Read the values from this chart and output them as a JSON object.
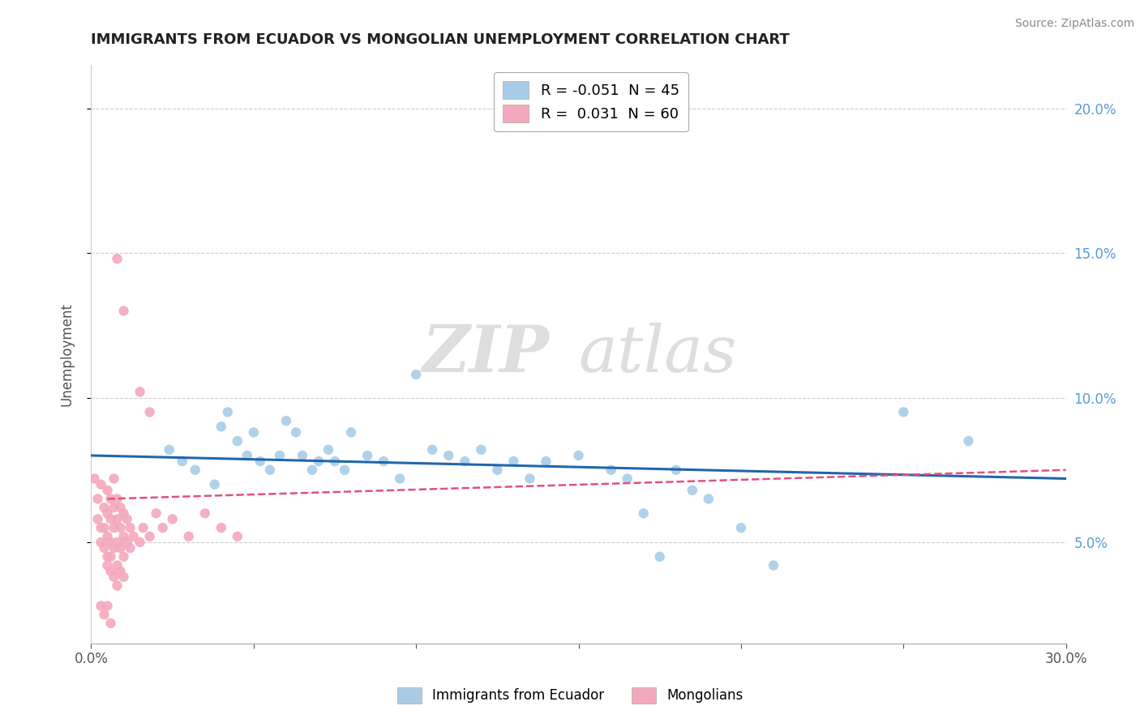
{
  "title": "IMMIGRANTS FROM ECUADOR VS MONGOLIAN UNEMPLOYMENT CORRELATION CHART",
  "source": "Source: ZipAtlas.com",
  "ylabel": "Unemployment",
  "xmin": 0.0,
  "xmax": 0.3,
  "ymin": 0.015,
  "ymax": 0.215,
  "yticks": [
    0.05,
    0.1,
    0.15,
    0.2
  ],
  "ytick_labels": [
    "5.0%",
    "10.0%",
    "15.0%",
    "20.0%"
  ],
  "legend_entries": [
    {
      "color": "#a8cce8",
      "label": "R = -0.051  N = 45"
    },
    {
      "color": "#f4a8be",
      "label": "R =  0.031  N = 60"
    }
  ],
  "blue_scatter": [
    [
      0.024,
      0.082
    ],
    [
      0.028,
      0.078
    ],
    [
      0.032,
      0.075
    ],
    [
      0.038,
      0.07
    ],
    [
      0.04,
      0.09
    ],
    [
      0.042,
      0.095
    ],
    [
      0.045,
      0.085
    ],
    [
      0.048,
      0.08
    ],
    [
      0.05,
      0.088
    ],
    [
      0.052,
      0.078
    ],
    [
      0.055,
      0.075
    ],
    [
      0.058,
      0.08
    ],
    [
      0.06,
      0.092
    ],
    [
      0.063,
      0.088
    ],
    [
      0.065,
      0.08
    ],
    [
      0.068,
      0.075
    ],
    [
      0.07,
      0.078
    ],
    [
      0.073,
      0.082
    ],
    [
      0.075,
      0.078
    ],
    [
      0.078,
      0.075
    ],
    [
      0.08,
      0.088
    ],
    [
      0.085,
      0.08
    ],
    [
      0.09,
      0.078
    ],
    [
      0.095,
      0.072
    ],
    [
      0.1,
      0.108
    ],
    [
      0.105,
      0.082
    ],
    [
      0.11,
      0.08
    ],
    [
      0.115,
      0.078
    ],
    [
      0.12,
      0.082
    ],
    [
      0.125,
      0.075
    ],
    [
      0.13,
      0.078
    ],
    [
      0.135,
      0.072
    ],
    [
      0.14,
      0.078
    ],
    [
      0.15,
      0.08
    ],
    [
      0.16,
      0.075
    ],
    [
      0.165,
      0.072
    ],
    [
      0.17,
      0.06
    ],
    [
      0.175,
      0.045
    ],
    [
      0.18,
      0.075
    ],
    [
      0.185,
      0.068
    ],
    [
      0.19,
      0.065
    ],
    [
      0.2,
      0.055
    ],
    [
      0.21,
      0.042
    ],
    [
      0.25,
      0.095
    ],
    [
      0.27,
      0.085
    ]
  ],
  "pink_scatter": [
    [
      0.001,
      0.072
    ],
    [
      0.002,
      0.065
    ],
    [
      0.002,
      0.058
    ],
    [
      0.003,
      0.07
    ],
    [
      0.003,
      0.055
    ],
    [
      0.003,
      0.05
    ],
    [
      0.004,
      0.062
    ],
    [
      0.004,
      0.048
    ],
    [
      0.004,
      0.055
    ],
    [
      0.005,
      0.068
    ],
    [
      0.005,
      0.06
    ],
    [
      0.005,
      0.052
    ],
    [
      0.005,
      0.045
    ],
    [
      0.005,
      0.042
    ],
    [
      0.006,
      0.065
    ],
    [
      0.006,
      0.058
    ],
    [
      0.006,
      0.05
    ],
    [
      0.006,
      0.045
    ],
    [
      0.006,
      0.04
    ],
    [
      0.007,
      0.072
    ],
    [
      0.007,
      0.062
    ],
    [
      0.007,
      0.055
    ],
    [
      0.007,
      0.048
    ],
    [
      0.007,
      0.038
    ],
    [
      0.008,
      0.065
    ],
    [
      0.008,
      0.058
    ],
    [
      0.008,
      0.05
    ],
    [
      0.008,
      0.042
    ],
    [
      0.008,
      0.035
    ],
    [
      0.009,
      0.062
    ],
    [
      0.009,
      0.055
    ],
    [
      0.009,
      0.048
    ],
    [
      0.009,
      0.04
    ],
    [
      0.01,
      0.06
    ],
    [
      0.01,
      0.052
    ],
    [
      0.01,
      0.045
    ],
    [
      0.01,
      0.038
    ],
    [
      0.011,
      0.058
    ],
    [
      0.011,
      0.05
    ],
    [
      0.012,
      0.055
    ],
    [
      0.012,
      0.048
    ],
    [
      0.013,
      0.052
    ],
    [
      0.015,
      0.05
    ],
    [
      0.016,
      0.055
    ],
    [
      0.018,
      0.052
    ],
    [
      0.02,
      0.06
    ],
    [
      0.022,
      0.055
    ],
    [
      0.025,
      0.058
    ],
    [
      0.03,
      0.052
    ],
    [
      0.035,
      0.06
    ],
    [
      0.04,
      0.055
    ],
    [
      0.045,
      0.052
    ],
    [
      0.008,
      0.148
    ],
    [
      0.01,
      0.13
    ],
    [
      0.015,
      0.102
    ],
    [
      0.018,
      0.095
    ],
    [
      0.003,
      0.028
    ],
    [
      0.004,
      0.025
    ],
    [
      0.005,
      0.028
    ],
    [
      0.006,
      0.022
    ]
  ],
  "blue_line_x": [
    0.0,
    0.3
  ],
  "blue_line_y": [
    0.08,
    0.072
  ],
  "pink_line_x": [
    0.005,
    0.3
  ],
  "pink_line_y": [
    0.065,
    0.075
  ],
  "blue_color": "#a8cce8",
  "pink_color": "#f4a8be",
  "blue_line_color": "#2166ac",
  "pink_line_color": "#e05080",
  "watermark_zip": "ZIP",
  "watermark_atlas": "atlas",
  "background_color": "#ffffff",
  "grid_color": "#cccccc",
  "right_axis_color": "#5b9bd5"
}
